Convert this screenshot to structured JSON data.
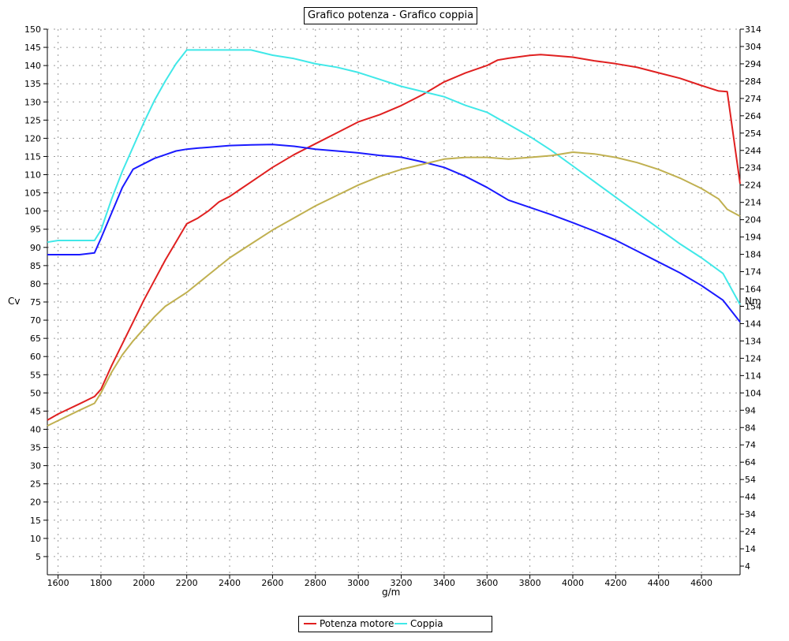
{
  "chart_data": {
    "type": "line",
    "title": "Grafico potenza - Grafico coppia",
    "xlabel": "g/m",
    "ylabel_left": "Cv",
    "ylabel_right": "Nm",
    "xlim": [
      1550,
      4780
    ],
    "ylim_left": [
      0,
      150
    ],
    "ylim_right": [
      -1,
      314
    ],
    "x_ticks": [
      1600,
      1800,
      2000,
      2200,
      2400,
      2600,
      2800,
      3000,
      3200,
      3400,
      3600,
      3800,
      4000,
      4200,
      4400,
      4600
    ],
    "y_left_ticks": [
      5,
      10,
      15,
      20,
      25,
      30,
      35,
      40,
      45,
      50,
      55,
      60,
      65,
      70,
      75,
      80,
      85,
      90,
      95,
      100,
      105,
      110,
      115,
      120,
      125,
      130,
      135,
      140,
      145,
      150
    ],
    "y_right_ticks": [
      4,
      14,
      24,
      34,
      44,
      54,
      64,
      74,
      84,
      94,
      104,
      114,
      124,
      134,
      144,
      154,
      164,
      174,
      184,
      194,
      204,
      214,
      224,
      234,
      244,
      254,
      264,
      274,
      284,
      294,
      304,
      314
    ],
    "grid": true,
    "legend_position": "bottom",
    "colors": {
      "potenza_motore": "#e02020",
      "coppia": "#40e8e8",
      "potenza_second": "#1a1aff",
      "coppia_second": "#c0b050"
    },
    "series": [
      {
        "name": "Potenza motore",
        "axis": "left",
        "color_key": "potenza_motore",
        "x": [
          1550,
          1600,
          1700,
          1770,
          1800,
          1850,
          1900,
          1950,
          2000,
          2050,
          2100,
          2150,
          2200,
          2250,
          2300,
          2350,
          2400,
          2450,
          2500,
          2600,
          2700,
          2800,
          2900,
          3000,
          3100,
          3200,
          3300,
          3400,
          3500,
          3600,
          3650,
          3700,
          3800,
          3850,
          3900,
          4000,
          4100,
          4200,
          4300,
          4400,
          4500,
          4600,
          4680,
          4720,
          4780
        ],
        "y": [
          42.5,
          44.2,
          47.0,
          49.0,
          51.0,
          57.5,
          63.5,
          69.5,
          75.5,
          81.0,
          86.5,
          91.5,
          96.5,
          98.0,
          100.0,
          102.5,
          104.0,
          106.0,
          108.0,
          112.0,
          115.5,
          118.5,
          121.5,
          124.5,
          126.5,
          129.0,
          132.0,
          135.5,
          138.0,
          140.0,
          141.5,
          142.0,
          142.8,
          143.0,
          142.8,
          142.3,
          141.3,
          140.5,
          139.5,
          138.0,
          136.5,
          134.5,
          133.0,
          132.8,
          107.5
        ]
      },
      {
        "name": "Coppia",
        "axis": "right",
        "color_key": "coppia",
        "x": [
          1550,
          1600,
          1700,
          1770,
          1800,
          1850,
          1900,
          1950,
          2000,
          2050,
          2100,
          2150,
          2200,
          2240,
          2300,
          2400,
          2450,
          2500,
          2600,
          2700,
          2800,
          2900,
          3000,
          3100,
          3200,
          3300,
          3400,
          3500,
          3600,
          3700,
          3800,
          3900,
          4000,
          4100,
          4200,
          4300,
          4400,
          4500,
          4600,
          4700,
          4780
        ],
        "y": [
          191,
          192,
          192,
          192,
          198,
          216,
          232,
          246,
          260,
          273,
          284,
          294,
          302,
          302,
          302,
          302,
          302,
          302,
          299,
          297,
          294,
          292,
          289,
          285,
          281,
          278,
          275,
          270,
          266,
          259,
          252,
          244,
          235,
          226,
          217,
          208,
          199,
          190,
          182,
          173,
          155
        ]
      },
      {
        "name": "",
        "axis": "left",
        "color_key": "potenza_second",
        "x": [
          1550,
          1600,
          1700,
          1770,
          1800,
          1850,
          1900,
          1950,
          2000,
          2050,
          2100,
          2150,
          2200,
          2250,
          2300,
          2400,
          2500,
          2600,
          2700,
          2800,
          2900,
          3000,
          3100,
          3200,
          3300,
          3400,
          3500,
          3600,
          3700,
          3800,
          3900,
          4000,
          4100,
          4200,
          4300,
          4400,
          4500,
          4600,
          4700,
          4780
        ],
        "y": [
          88.0,
          88.0,
          88.0,
          88.5,
          92.5,
          99.5,
          106.5,
          111.5,
          113.0,
          114.5,
          115.5,
          116.5,
          117.0,
          117.3,
          117.5,
          118.0,
          118.2,
          118.3,
          117.8,
          117.0,
          116.5,
          116.0,
          115.3,
          114.8,
          113.5,
          112.0,
          109.5,
          106.5,
          103.0,
          101.0,
          99.0,
          96.8,
          94.5,
          92.0,
          89.0,
          86.0,
          83.0,
          79.5,
          75.5,
          69.5
        ]
      },
      {
        "name": "",
        "axis": "right",
        "color_key": "coppia_second",
        "x": [
          1550,
          1600,
          1700,
          1770,
          1800,
          1850,
          1900,
          1950,
          2000,
          2050,
          2100,
          2150,
          2200,
          2300,
          2400,
          2500,
          2600,
          2700,
          2800,
          2900,
          3000,
          3100,
          3200,
          3300,
          3400,
          3500,
          3600,
          3700,
          3800,
          3900,
          4000,
          4100,
          4200,
          4300,
          4400,
          4500,
          4600,
          4680,
          4720,
          4780
        ],
        "y": [
          85,
          88,
          94,
          98,
          104,
          116,
          126,
          134,
          141,
          148,
          154,
          158,
          162,
          172,
          182,
          190,
          198,
          205,
          212,
          218,
          224,
          229,
          233,
          236,
          239,
          240,
          240,
          239,
          240,
          241,
          243,
          242,
          240,
          237,
          233,
          228,
          222,
          216,
          210,
          206
        ]
      }
    ]
  }
}
